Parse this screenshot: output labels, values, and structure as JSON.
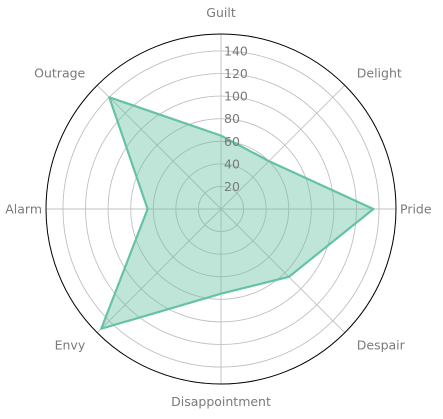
{
  "chart_data": {
    "type": "radar",
    "categories": [
      "Guilt",
      "Delight",
      "Pride",
      "Despair",
      "Disappointment",
      "Envy",
      "Alarm",
      "Outrage"
    ],
    "series": [
      {
        "values": [
          65,
          60,
          135,
          85,
          75,
          150,
          65,
          140
        ]
      }
    ],
    "rlim": [
      0,
      155
    ],
    "r_ticks": [
      20,
      40,
      60,
      80,
      100,
      120,
      140
    ],
    "grid": true,
    "colors": {
      "line": "#66c2a5",
      "fill": "#66c2a5",
      "grid": "#c0c0c0",
      "outer": "#000000",
      "text": "#7a7a7a"
    }
  }
}
